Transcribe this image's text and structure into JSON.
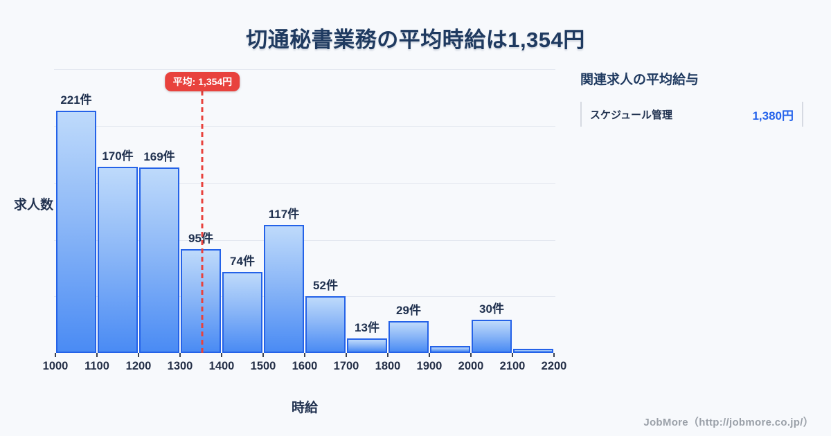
{
  "page": {
    "title": "切通秘書業務の平均時給は1,354円"
  },
  "chart_data": {
    "type": "bar",
    "subtype": "histogram",
    "title": "切通秘書業務の平均時給は1,354円",
    "xlabel": "時給",
    "ylabel": "求人数",
    "unit": "件",
    "x_ticks": [
      1000,
      1100,
      1200,
      1300,
      1400,
      1500,
      1600,
      1700,
      1800,
      1900,
      2000,
      2100,
      2200
    ],
    "bins": [
      {
        "range": [
          1000,
          1100
        ],
        "count": 221,
        "label": "221件"
      },
      {
        "range": [
          1100,
          1200
        ],
        "count": 170,
        "label": "170件"
      },
      {
        "range": [
          1200,
          1300
        ],
        "count": 169,
        "label": "169件"
      },
      {
        "range": [
          1300,
          1400
        ],
        "count": 95,
        "label": "95件"
      },
      {
        "range": [
          1400,
          1500
        ],
        "count": 74,
        "label": "74件"
      },
      {
        "range": [
          1500,
          1600
        ],
        "count": 117,
        "label": "117件"
      },
      {
        "range": [
          1600,
          1700
        ],
        "count": 52,
        "label": "52件"
      },
      {
        "range": [
          1700,
          1800
        ],
        "count": 13,
        "label": "13件"
      },
      {
        "range": [
          1800,
          1900
        ],
        "count": 29,
        "label": "29件"
      },
      {
        "range": [
          1900,
          2000
        ],
        "count": 6,
        "label": ""
      },
      {
        "range": [
          2000,
          2100
        ],
        "count": 30,
        "label": "30件"
      },
      {
        "range": [
          2100,
          2200
        ],
        "count": 4,
        "label": ""
      }
    ],
    "average_line": {
      "value": 1354,
      "label": "平均: 1,354円"
    },
    "ylim": [
      0,
      259
    ],
    "grid": "horizontal",
    "legend": false
  },
  "side_panel": {
    "heading": "関連求人の平均給与",
    "rows": [
      {
        "label": "スケジュール管理",
        "value": "1,380円"
      }
    ]
  },
  "footer": {
    "credit": "JobMore（http://jobmore.co.jp/）"
  },
  "colors": {
    "background": "#f7f9fc",
    "title_text": "#1f3a60",
    "dark_text": "#20314f",
    "bar_fill_top": "#bedafb",
    "bar_fill_bottom": "#4a8bf4",
    "bar_border": "#2462e8",
    "average_red": "#e8423d",
    "value_blue": "#2563eb",
    "grid_line": "#e4e8f0",
    "row_border": "#d6dae2",
    "footer_gray": "#9aa0a8"
  }
}
